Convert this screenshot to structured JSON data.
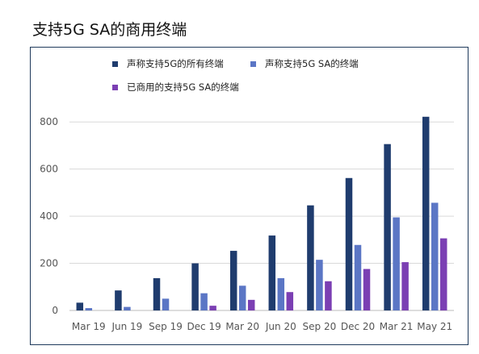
{
  "title": "支持5G SA的商用终端",
  "chart_data": {
    "type": "bar",
    "title": "支持5G SA的商用终端",
    "xlabel": "",
    "ylabel": "",
    "ylim": [
      0,
      900
    ],
    "yticks": [
      0,
      200,
      400,
      600,
      800
    ],
    "grid": true,
    "legend_position": "top",
    "categories": [
      "Mar 19",
      "Jun 19",
      "Sep 19",
      "Dec 19",
      "Mar 20",
      "Jun 20",
      "Sep 20",
      "Dec 20",
      "Mar 21",
      "May 21"
    ],
    "series": [
      {
        "name": "声称支持5G的所有终端",
        "color": "#1f3c6e",
        "values": [
          33,
          85,
          137,
          200,
          253,
          318,
          446,
          562,
          706,
          822
        ]
      },
      {
        "name": "声称支持5G SA的终端",
        "color": "#5b76c5",
        "values": [
          10,
          15,
          50,
          73,
          105,
          137,
          215,
          278,
          395,
          457
        ]
      },
      {
        "name": "已商用的支持5G SA的终端",
        "color": "#7b3fb3",
        "values": [
          0,
          0,
          0,
          20,
          45,
          78,
          124,
          176,
          205,
          306
        ]
      }
    ]
  }
}
